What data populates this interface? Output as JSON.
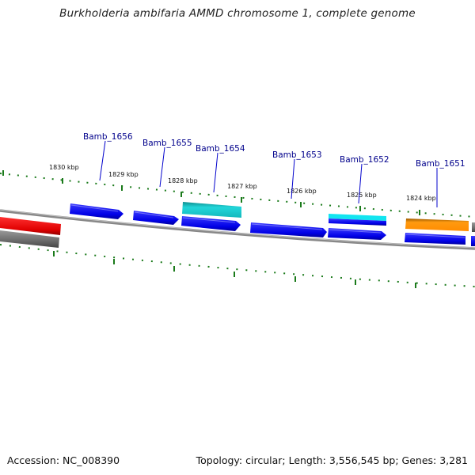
{
  "title": "Burkholderia ambifaria AMMD chromosome 1, complete genome",
  "footer": {
    "accession": "Accession: NC_008390",
    "topology": "Topology: circular; Length: 3,556,545 bp; Genes: 3,281"
  },
  "colors": {
    "gene_blue": "#0000ee",
    "gene_cyan": "#19d0d4",
    "gene_red": "#ee0000",
    "gene_orange": "#ff9900",
    "gene_gray": "#707070",
    "tick_green": "#1a7a1a",
    "label_blue": "#00008b",
    "backbone": "#808080"
  },
  "kbp_labels": [
    "1830 kbp",
    "1829 kbp",
    "1828 kbp",
    "1827 kbp",
    "1826 kbp",
    "1825 kbp",
    "1824 kbp"
  ],
  "gene_labels": [
    "Bamb_1656",
    "Bamb_1655",
    "Bamb_1654",
    "Bamb_1653",
    "Bamb_1652",
    "Bamb_1651"
  ]
}
